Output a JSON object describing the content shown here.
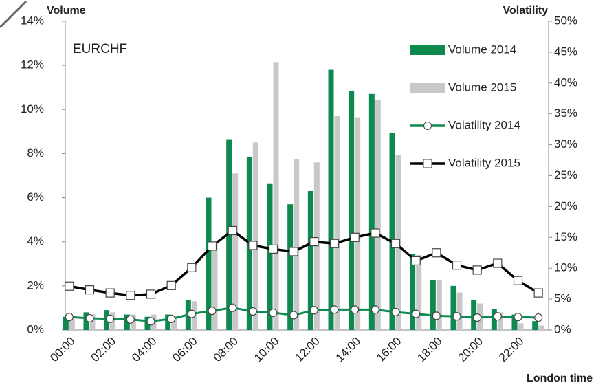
{
  "chart_data": {
    "type": "bar",
    "annotation": "EURCHF",
    "y_label": "Volume",
    "y2_label": "Volatility",
    "x_label": "London time",
    "categories": [
      "00:00",
      null,
      "02:00",
      null,
      "04:00",
      null,
      "06:00",
      null,
      "08:00",
      null,
      "10:00",
      null,
      "12:00",
      null,
      "14:00",
      null,
      "16:00",
      null,
      "18:00",
      null,
      "20:00",
      null,
      "22:00",
      null
    ],
    "ylim": [
      0,
      14
    ],
    "yticks": [
      {
        "value": 0,
        "label": "0%"
      },
      {
        "value": 2,
        "label": "2%"
      },
      {
        "value": 4,
        "label": "4%"
      },
      {
        "value": 6,
        "label": "6%"
      },
      {
        "value": 8,
        "label": "8%"
      },
      {
        "value": 10,
        "label": "10%"
      },
      {
        "value": 12,
        "label": "12%"
      },
      {
        "value": 14,
        "label": "14%"
      }
    ],
    "y2lim": [
      0,
      50
    ],
    "y2ticks": [
      {
        "value": 0,
        "label": "0%"
      },
      {
        "value": 5,
        "label": "5%"
      },
      {
        "value": 10,
        "label": "10%"
      },
      {
        "value": 15,
        "label": "15%"
      },
      {
        "value": 20,
        "label": "20%"
      },
      {
        "value": 25,
        "label": "25%"
      },
      {
        "value": 30,
        "label": "30%"
      },
      {
        "value": 35,
        "label": "35%"
      },
      {
        "value": 40,
        "label": "40%"
      },
      {
        "value": 45,
        "label": "45%"
      },
      {
        "value": 50,
        "label": "50%"
      }
    ],
    "series": [
      {
        "name": "Volume 2014",
        "type": "bar",
        "color": "#0e8a4f",
        "values": [
          0.6,
          0.8,
          0.9,
          0.7,
          0.6,
          0.7,
          1.35,
          6.0,
          8.65,
          7.85,
          6.65,
          5.7,
          6.3,
          11.8,
          10.85,
          10.7,
          8.95,
          3.45,
          2.25,
          2.0,
          1.35,
          0.95,
          0.7,
          0.4
        ]
      },
      {
        "name": "Volume 2015",
        "type": "bar",
        "color": "#c8c8c8",
        "values": [
          0.5,
          0.7,
          0.8,
          0.7,
          0.7,
          0.6,
          1.3,
          3.9,
          7.1,
          8.5,
          12.15,
          7.75,
          7.6,
          9.7,
          9.65,
          10.45,
          7.95,
          3.4,
          2.25,
          1.7,
          1.2,
          0.8,
          0.3,
          0.2
        ]
      },
      {
        "name": "Volatility 2014",
        "type": "line",
        "axis": "y2",
        "marker": "circle",
        "color": "#0e8a4f",
        "values": [
          2.1,
          1.9,
          1.8,
          1.7,
          1.4,
          1.8,
          2.6,
          3.1,
          3.6,
          3.0,
          2.8,
          2.4,
          3.2,
          3.3,
          3.3,
          3.3,
          2.9,
          2.6,
          2.3,
          2.2,
          2.0,
          2.2,
          2.1,
          2.0
        ]
      },
      {
        "name": "Volatility 2015",
        "type": "line",
        "axis": "y2",
        "marker": "square",
        "color": "#000000",
        "values": [
          7.1,
          6.5,
          6.0,
          5.6,
          5.8,
          7.2,
          10.1,
          13.6,
          16.1,
          13.7,
          13.1,
          12.7,
          14.3,
          14.0,
          15.0,
          15.7,
          14.0,
          11.2,
          12.5,
          10.5,
          9.7,
          10.8,
          8.0,
          6.0
        ]
      }
    ],
    "legend": "right"
  }
}
